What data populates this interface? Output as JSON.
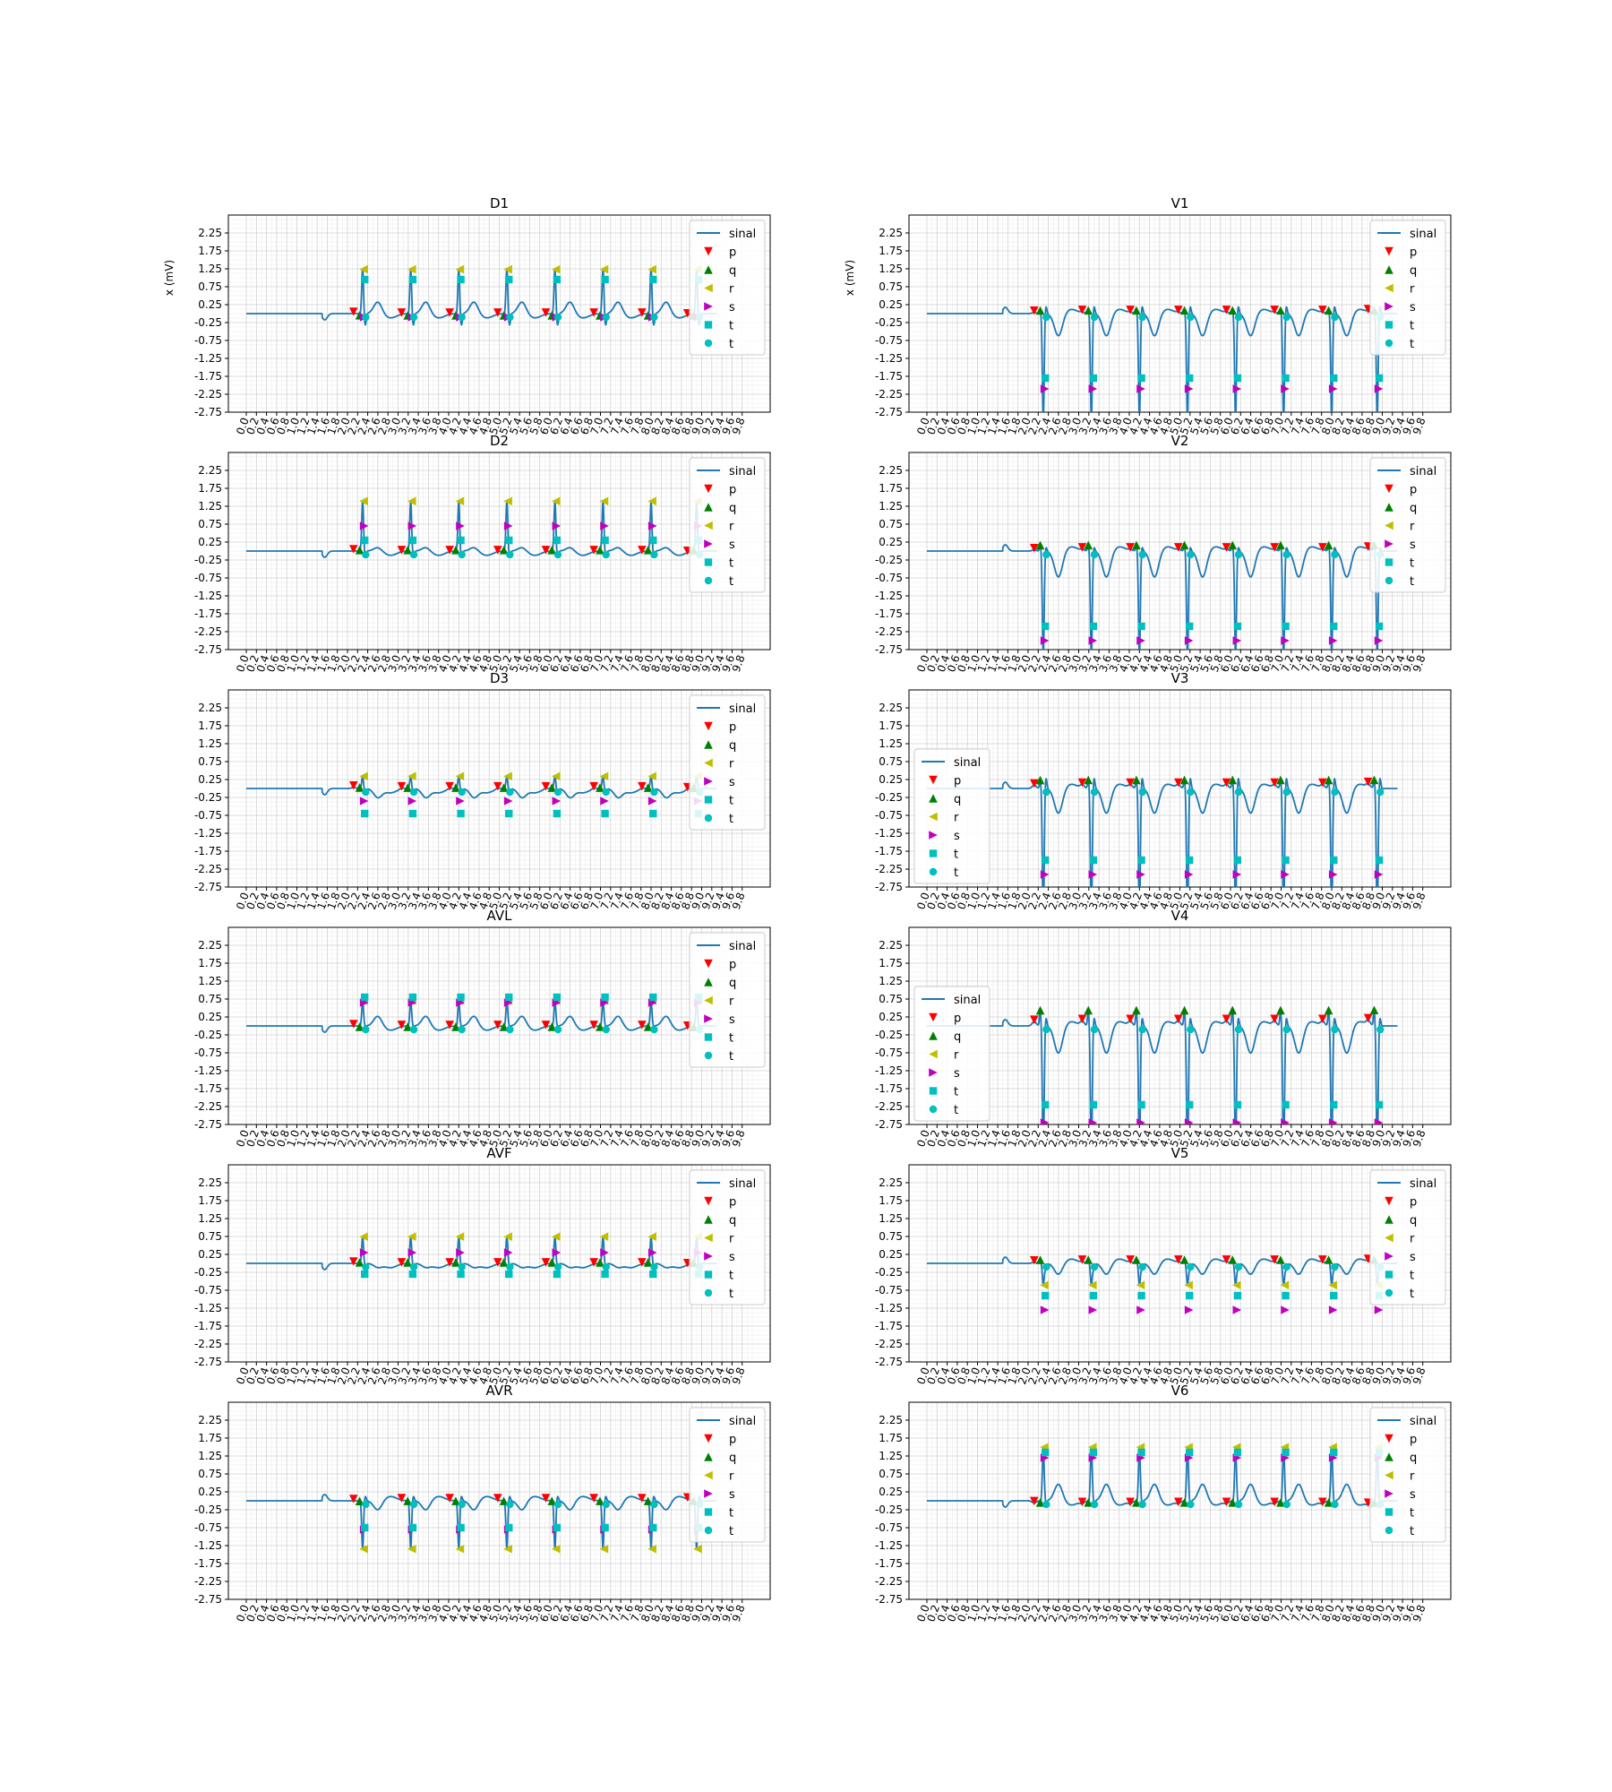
{
  "figure": {
    "background": "#ffffff"
  },
  "colors": {
    "sinal": "#1f77b4",
    "p": "#ff0000",
    "q": "#008000",
    "r": "#bfbf00",
    "s": "#bf00bf",
    "t1": "#00bfbf",
    "t2": "#00bfbf"
  },
  "chart_data": {
    "type": "line",
    "xlabel": "",
    "ylabel": "x (mV)",
    "xlim": [
      0,
      10
    ],
    "ylim": [
      -2.75,
      2.75
    ],
    "grid": true,
    "legend": {
      "placement": "top-right",
      "entries": [
        {
          "key": "sinal",
          "label": "sinal",
          "marker": "line"
        },
        {
          "key": "p",
          "label": "p",
          "marker": "triangle-down"
        },
        {
          "key": "q",
          "label": "q",
          "marker": "triangle-up"
        },
        {
          "key": "r",
          "label": "r",
          "marker": "triangle-left"
        },
        {
          "key": "s",
          "label": "s",
          "marker": "triangle-right"
        },
        {
          "key": "t1",
          "label": "t",
          "marker": "square"
        },
        {
          "key": "t2",
          "label": "t",
          "marker": "circle"
        }
      ]
    },
    "xticks": [
      "0.0",
      "0.2",
      "0.4",
      "0.6",
      "0.8",
      "1.0",
      "1.2",
      "1.4",
      "1.6",
      "1.8",
      "2.0",
      "2.2",
      "2.4",
      "2.6",
      "2.8",
      "3.0",
      "3.2",
      "3.4",
      "3.6",
      "3.8",
      "4.0",
      "4.2",
      "4.4",
      "4.6",
      "4.8",
      "5.0",
      "5.2",
      "5.4",
      "5.6",
      "5.8",
      "6.0",
      "6.2",
      "6.4",
      "6.6",
      "6.8",
      "7.0",
      "7.2",
      "7.4",
      "7.6",
      "7.8",
      "8.0",
      "8.2",
      "8.4",
      "8.6",
      "8.8",
      "9.0",
      "9.2",
      "9.4",
      "9.6",
      "9.8"
    ],
    "yticks": [
      "2.25",
      "1.75",
      "1.25",
      "0.75",
      "0.25",
      "-0.25",
      "-0.75",
      "-1.25",
      "-1.75",
      "-2.25",
      "-2.75"
    ],
    "beats": [
      2.3,
      3.25,
      4.2,
      5.15,
      6.1,
      7.05,
      8.0,
      8.9
    ],
    "signal_start": 1.5,
    "signal_end": 9.0,
    "panels": [
      {
        "title": "D1",
        "ylabel": "x (mV)",
        "ylim": [
          -2.75,
          2.75
        ],
        "baseline": 0.0,
        "r_amp": 1.25,
        "q_amp": -0.1,
        "s_amp": -0.1,
        "t_amp": 0.95,
        "p_amp": 0.0,
        "legend_loc": "top-right"
      },
      {
        "title": "V1",
        "ylabel": "x (mV)",
        "ylim": [
          -2.75,
          2.75
        ],
        "baseline": 0.0,
        "r_amp": -3.0,
        "q_amp": 0.2,
        "s_amp": -2.1,
        "t_amp": -1.8,
        "p_amp": 0.05,
        "legend_loc": "top-right"
      },
      {
        "title": "D2",
        "ylabel": "",
        "ylim": [
          -2.75,
          2.75
        ],
        "baseline": 0.0,
        "r_amp": 1.4,
        "q_amp": 0.05,
        "s_amp": 0.7,
        "t_amp": 0.3,
        "p_amp": 0.0,
        "legend_loc": "top-right"
      },
      {
        "title": "V2",
        "ylabel": "",
        "ylim": [
          -2.75,
          2.75
        ],
        "baseline": 0.0,
        "r_amp": -3.0,
        "q_amp": 0.35,
        "s_amp": -2.5,
        "t_amp": -2.1,
        "p_amp": 0.05,
        "legend_loc": "top-right"
      },
      {
        "title": "D3",
        "ylabel": "",
        "ylim": [
          -2.75,
          2.75
        ],
        "baseline": 0.0,
        "r_amp": 0.35,
        "q_amp": 0.05,
        "s_amp": -0.35,
        "t_amp": -0.7,
        "p_amp": 0.05,
        "legend_loc": "top-right"
      },
      {
        "title": "V3",
        "ylabel": "",
        "ylim": [
          -2.75,
          2.75
        ],
        "baseline": 0.0,
        "r_amp": -3.7,
        "q_amp": 0.5,
        "s_amp": -2.4,
        "t_amp": -2.0,
        "p_amp": 0.15,
        "legend_loc": "bottom-left"
      },
      {
        "title": "AVL",
        "ylabel": "",
        "ylim": [
          -2.75,
          2.75
        ],
        "baseline": 0.0,
        "r_amp": 0.7,
        "q_amp": -0.05,
        "s_amp": 0.65,
        "t_amp": 0.8,
        "p_amp": 0.0,
        "legend_loc": "top-right"
      },
      {
        "title": "V4",
        "ylabel": "",
        "ylim": [
          -2.75,
          2.75
        ],
        "baseline": 0.0,
        "r_amp": -3.7,
        "q_amp": 0.9,
        "s_amp": -2.7,
        "t_amp": -2.2,
        "p_amp": 0.2,
        "legend_loc": "bottom-left"
      },
      {
        "title": "AVF",
        "ylabel": "",
        "ylim": [
          -2.75,
          2.75
        ],
        "baseline": 0.0,
        "r_amp": 0.75,
        "q_amp": 0.05,
        "s_amp": 0.3,
        "t_amp": -0.3,
        "p_amp": 0.0,
        "legend_loc": "top-right"
      },
      {
        "title": "V5",
        "ylabel": "",
        "ylim": [
          -2.75,
          2.75
        ],
        "baseline": 0.0,
        "r_amp": -0.6,
        "q_amp": 0.2,
        "s_amp": -1.3,
        "t_amp": -0.9,
        "p_amp": 0.05,
        "legend_loc": "top-right"
      },
      {
        "title": "AVR",
        "ylabel": "",
        "ylim": [
          -2.75,
          2.75
        ],
        "baseline": 0.0,
        "r_amp": -1.35,
        "q_amp": 0.0,
        "s_amp": -0.8,
        "t_amp": -0.75,
        "p_amp": 0.0,
        "legend_loc": "top-right"
      },
      {
        "title": "V6",
        "ylabel": "",
        "ylim": [
          -2.75,
          2.75
        ],
        "baseline": 0.0,
        "r_amp": 1.5,
        "q_amp": -0.1,
        "s_amp": 1.2,
        "t_amp": 1.35,
        "p_amp": -0.1,
        "legend_loc": "top-right"
      }
    ]
  }
}
